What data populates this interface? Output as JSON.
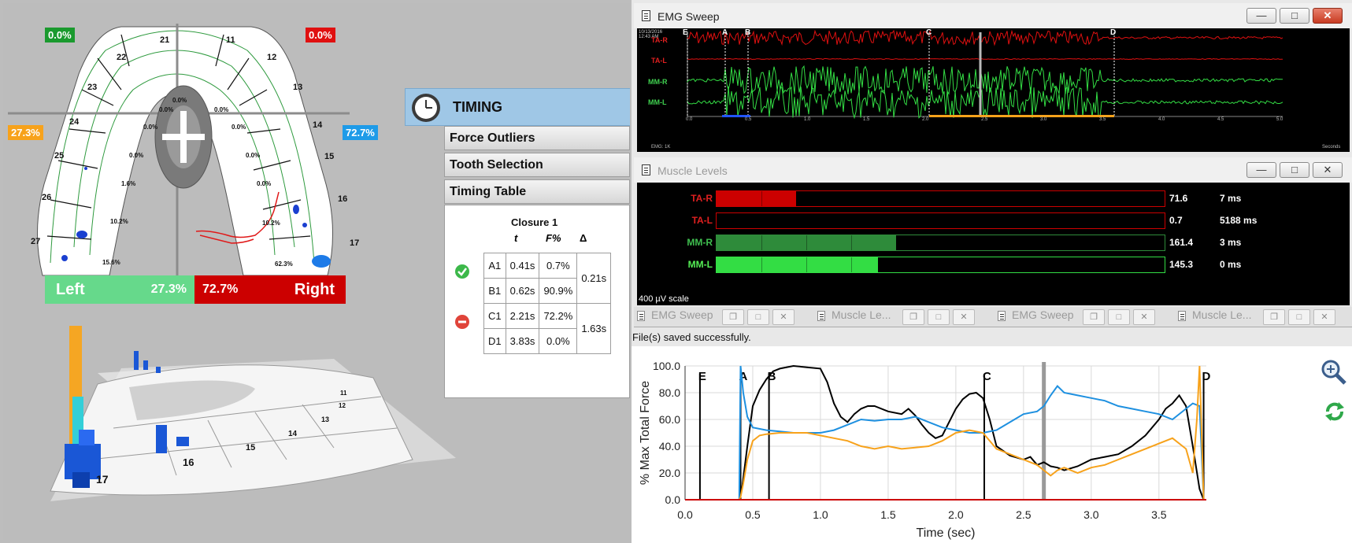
{
  "force_map": {
    "top_left_pct": "0.0%",
    "top_right_pct": "0.0%",
    "left_pct": "27.3%",
    "right_pct": "72.7%",
    "teeth_labels": [
      "21",
      "22",
      "23",
      "24",
      "25",
      "26",
      "27",
      "11",
      "12",
      "13",
      "14",
      "15",
      "16",
      "17"
    ],
    "segment_pcts": [
      "0.0%",
      "0.0%",
      "0.0%",
      "0.0%",
      "0.0%",
      "0.0%",
      "1.6%",
      "10.2%",
      "15.6%",
      "0.0%",
      "0.0%",
      "10.2%",
      "62.3%"
    ],
    "left_bar_label": "Left",
    "left_bar_value": "27.3%",
    "right_bar_label": "Right",
    "right_bar_value": "72.7%",
    "colors": {
      "left": "#66d98b",
      "right": "#cc0000",
      "left_marker": "#f7a21b",
      "right_marker": "#1e9be8"
    }
  },
  "view3d": {
    "tooth_labels": [
      "17",
      "16",
      "15",
      "14",
      "13",
      "12",
      "11"
    ]
  },
  "timing": {
    "title": "TIMING",
    "icon": "clock-icon",
    "menu": [
      "Force Outliers",
      "Tooth Selection",
      "Timing Table"
    ],
    "table": {
      "title": "Closure 1",
      "headers": [
        "t",
        "F%",
        "Δ"
      ],
      "rows": [
        {
          "id": "A1",
          "t": "0.41s",
          "f": "0.7%"
        },
        {
          "id": "B1",
          "t": "0.62s",
          "f": "90.9%"
        },
        {
          "id": "C1",
          "t": "2.21s",
          "f": "72.2%"
        },
        {
          "id": "D1",
          "t": "3.83s",
          "f": "0.0%"
        }
      ],
      "deltas": [
        "0.21s",
        "1.63s"
      ],
      "status_icons": [
        "check-icon",
        "minus-icon"
      ]
    }
  },
  "emg_sweep": {
    "title": "EMG Sweep",
    "date": "10/13/2016",
    "time": "12:43 AM",
    "channels": [
      "TA-R",
      "TA-L",
      "MM-R",
      "MM-L"
    ],
    "markers": [
      "E",
      "A",
      "B",
      "C",
      "D"
    ],
    "footer_left": "EMG: 1K",
    "footer_right": "Seconds",
    "x_ticks": [
      "0.0",
      "0.5",
      "1.0",
      "1.5",
      "2.0",
      "2.5",
      "3.0",
      "3.5",
      "4.0",
      "4.5",
      "5.0"
    ]
  },
  "muscle_levels": {
    "title": "Muscle Levels",
    "scale_label": "400 µV scale",
    "rows": [
      {
        "name": "TA-R",
        "value": "71.6",
        "time": "7 ms",
        "fraction": 0.177,
        "color": "#cc0000",
        "label_color": "#e02020"
      },
      {
        "name": "TA-L",
        "value": "0.7",
        "time": "5188 ms",
        "fraction": 0.0,
        "color": "#cc0000",
        "label_color": "#e02020"
      },
      {
        "name": "MM-R",
        "value": "161.4",
        "time": "3 ms",
        "fraction": 0.4,
        "color": "#2e8b3a",
        "label_color": "#3fbf4f"
      },
      {
        "name": "MM-L",
        "value": "145.3",
        "time": "0 ms",
        "fraction": 0.36,
        "color": "#33dd44",
        "label_color": "#55ee55"
      }
    ]
  },
  "tabs": [
    "EMG Sweep",
    "Muscle Le...",
    "EMG Sweep",
    "Muscle Le..."
  ],
  "status_message": "File(s) saved successfully.",
  "chart_data": {
    "type": "line",
    "xlabel": "Time (sec)",
    "ylabel": "% Max Total Force",
    "xlim": [
      0,
      3.85
    ],
    "ylim": [
      0,
      100
    ],
    "x_ticks": [
      "0.0",
      "0.5",
      "1.0",
      "1.5",
      "2.0",
      "2.5",
      "3.0",
      "3.5"
    ],
    "y_ticks": [
      "0.0",
      "20.0",
      "40.0",
      "60.0",
      "80.0",
      "100.0"
    ],
    "markers": [
      {
        "label": "E",
        "x": 0.11
      },
      {
        "label": "A",
        "x": 0.41
      },
      {
        "label": "B",
        "x": 0.62
      },
      {
        "label": "C",
        "x": 2.21
      },
      {
        "label": "D",
        "x": 3.83
      }
    ],
    "cursor_x": 2.65,
    "series": [
      {
        "color": "#000000",
        "x": [
          0,
          0.4,
          0.42,
          0.46,
          0.5,
          0.55,
          0.6,
          0.65,
          0.7,
          0.8,
          0.9,
          1.0,
          1.05,
          1.1,
          1.15,
          1.2,
          1.25,
          1.3,
          1.35,
          1.4,
          1.5,
          1.6,
          1.65,
          1.7,
          1.75,
          1.8,
          1.85,
          1.9,
          1.95,
          2.0,
          2.05,
          2.1,
          2.15,
          2.2,
          2.25,
          2.3,
          2.4,
          2.5,
          2.55,
          2.6,
          2.65,
          2.7,
          2.75,
          2.8,
          2.9,
          3.0,
          3.1,
          3.2,
          3.3,
          3.4,
          3.5,
          3.55,
          3.6,
          3.65,
          3.7,
          3.75,
          3.8,
          3.83
        ],
        "y": [
          0,
          0,
          8,
          40,
          70,
          82,
          90,
          96,
          98,
          100,
          99,
          98,
          88,
          72,
          62,
          58,
          64,
          68,
          70,
          70,
          66,
          64,
          68,
          63,
          56,
          50,
          46,
          48,
          58,
          68,
          75,
          79,
          80,
          76,
          60,
          40,
          33,
          30,
          32,
          26,
          28,
          25,
          24,
          22,
          25,
          30,
          32,
          34,
          40,
          48,
          60,
          68,
          72,
          78,
          70,
          40,
          8,
          0
        ]
      },
      {
        "color": "#1e90e0",
        "x": [
          0,
          0.4,
          0.41,
          0.43,
          0.46,
          0.5,
          0.6,
          0.7,
          0.8,
          0.9,
          1.0,
          1.1,
          1.2,
          1.3,
          1.4,
          1.5,
          1.6,
          1.7,
          1.8,
          1.9,
          2.0,
          2.1,
          2.2,
          2.3,
          2.4,
          2.5,
          2.6,
          2.65,
          2.7,
          2.75,
          2.8,
          2.9,
          3.0,
          3.1,
          3.2,
          3.3,
          3.4,
          3.5,
          3.6,
          3.7,
          3.75,
          3.8,
          3.83
        ],
        "y": [
          0,
          0,
          100,
          80,
          62,
          54,
          52,
          51,
          50,
          50,
          50,
          52,
          56,
          60,
          59,
          60,
          60,
          62,
          58,
          54,
          52,
          50,
          50,
          52,
          58,
          64,
          66,
          70,
          78,
          85,
          80,
          78,
          76,
          74,
          70,
          68,
          66,
          64,
          60,
          68,
          72,
          70,
          0
        ]
      },
      {
        "color": "#f7a21b",
        "x": [
          0,
          0.4,
          0.41,
          0.43,
          0.46,
          0.5,
          0.55,
          0.6,
          0.7,
          0.8,
          0.9,
          1.0,
          1.1,
          1.2,
          1.3,
          1.4,
          1.5,
          1.6,
          1.7,
          1.8,
          1.9,
          2.0,
          2.1,
          2.2,
          2.3,
          2.4,
          2.5,
          2.6,
          2.65,
          2.7,
          2.75,
          2.8,
          2.9,
          3.0,
          3.1,
          3.2,
          3.3,
          3.4,
          3.5,
          3.6,
          3.7,
          3.75,
          3.78,
          3.8,
          3.83
        ],
        "y": [
          0,
          0,
          2,
          12,
          30,
          44,
          48,
          49,
          50,
          50,
          50,
          48,
          46,
          44,
          40,
          38,
          40,
          38,
          39,
          40,
          44,
          50,
          52,
          50,
          38,
          34,
          30,
          26,
          22,
          18,
          22,
          24,
          20,
          24,
          26,
          30,
          34,
          38,
          42,
          46,
          38,
          20,
          60,
          100,
          0
        ]
      },
      {
        "color": "#cc0000",
        "x": [
          0,
          3.85
        ],
        "y": [
          0,
          0
        ]
      }
    ]
  }
}
